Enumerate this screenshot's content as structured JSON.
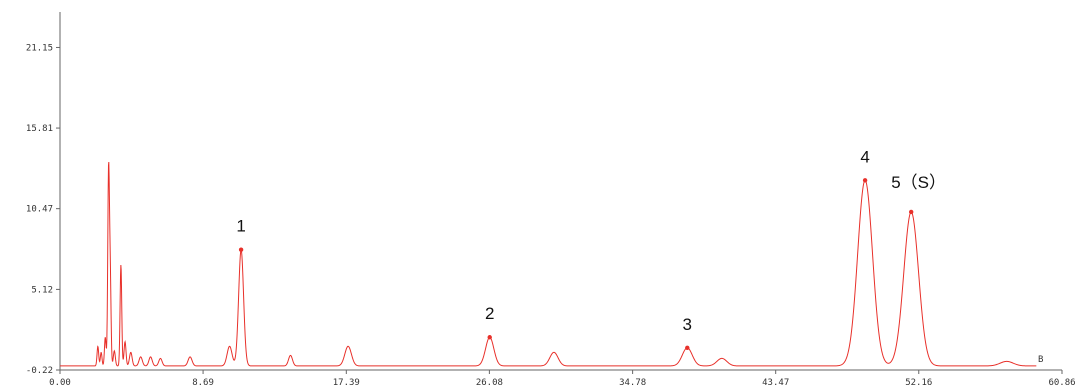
{
  "chart_data": {
    "type": "line",
    "title": "",
    "xlabel": "",
    "ylabel": "",
    "xlim": [
      0.0,
      60.86
    ],
    "ylim": [
      -0.22,
      23.5
    ],
    "grid": false,
    "line_color": "#e8302a",
    "axis_color": "#666666",
    "x_ticks": [
      {
        "value": 0.0,
        "label": "0.00"
      },
      {
        "value": 8.69,
        "label": "8.69"
      },
      {
        "value": 17.39,
        "label": "17.39"
      },
      {
        "value": 26.08,
        "label": "26.08"
      },
      {
        "value": 34.78,
        "label": "34.78"
      },
      {
        "value": 43.47,
        "label": "43.47"
      },
      {
        "value": 52.16,
        "label": "52.16"
      },
      {
        "value": 60.86,
        "label": "60.86"
      }
    ],
    "y_ticks": [
      {
        "value": -0.22,
        "label": "-0.22"
      },
      {
        "value": 5.12,
        "label": "5.12"
      },
      {
        "value": 10.47,
        "label": "10.47"
      },
      {
        "value": 15.81,
        "label": "15.81"
      },
      {
        "value": 21.15,
        "label": "21.15"
      }
    ],
    "end_marker": "B",
    "series": [
      {
        "baseline": 0.05,
        "peaks": [
          {
            "x": 2.3,
            "y": 1.3,
            "w": 0.05
          },
          {
            "x": 2.5,
            "y": 0.9,
            "w": 0.05
          },
          {
            "x": 2.75,
            "y": 1.9,
            "w": 0.05
          },
          {
            "x": 2.95,
            "y": 12.7,
            "w": 0.05
          },
          {
            "x": 3.05,
            "y": 5.8,
            "w": 0.05
          },
          {
            "x": 3.3,
            "y": 1.0,
            "w": 0.06
          },
          {
            "x": 3.7,
            "y": 6.7,
            "w": 0.05
          },
          {
            "x": 3.95,
            "y": 1.6,
            "w": 0.06
          },
          {
            "x": 4.3,
            "y": 0.9,
            "w": 0.08
          },
          {
            "x": 4.9,
            "y": 0.6,
            "w": 0.1
          },
          {
            "x": 5.5,
            "y": 0.6,
            "w": 0.1
          },
          {
            "x": 6.1,
            "y": 0.5,
            "w": 0.1
          },
          {
            "x": 7.9,
            "y": 0.6,
            "w": 0.12
          },
          {
            "x": 10.3,
            "y": 1.3,
            "w": 0.15
          },
          {
            "x": 11.0,
            "y": 7.7,
            "w": 0.15
          },
          {
            "x": 14.0,
            "y": 0.7,
            "w": 0.12
          },
          {
            "x": 17.5,
            "y": 1.3,
            "w": 0.2
          },
          {
            "x": 26.1,
            "y": 1.9,
            "w": 0.25
          },
          {
            "x": 30.0,
            "y": 0.9,
            "w": 0.25
          },
          {
            "x": 38.1,
            "y": 1.2,
            "w": 0.3
          },
          {
            "x": 40.2,
            "y": 0.5,
            "w": 0.3
          },
          {
            "x": 48.9,
            "y": 12.3,
            "w": 0.45
          },
          {
            "x": 51.7,
            "y": 10.2,
            "w": 0.45
          },
          {
            "x": 57.5,
            "y": 0.3,
            "w": 0.4
          }
        ]
      }
    ],
    "peak_labels": [
      {
        "label": "1",
        "x": 11.0,
        "y": 7.7
      },
      {
        "label": "2",
        "x": 26.1,
        "y": 1.9
      },
      {
        "label": "3",
        "x": 38.1,
        "y": 1.2
      },
      {
        "label": "4",
        "x": 48.9,
        "y": 12.3
      },
      {
        "label": "5（S）",
        "x": 51.7,
        "y": 10.2
      }
    ]
  }
}
